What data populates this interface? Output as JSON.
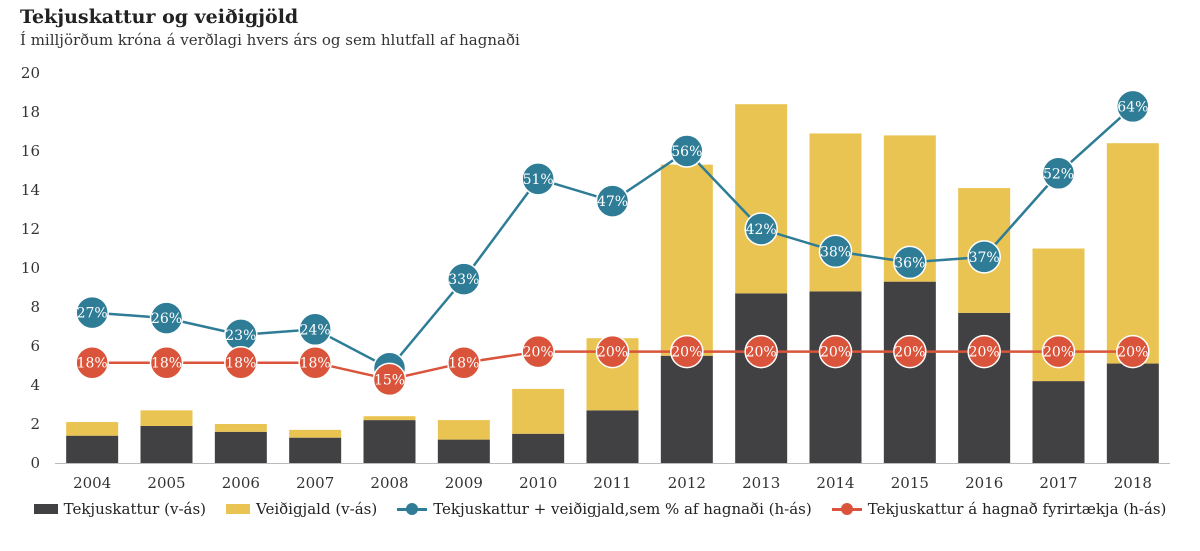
{
  "header": {
    "title": "Tekjuskattur og veiðigjöld",
    "subtitle": "Í milljörðum króna á verðlagi hvers árs og sem hlutfall af hagnaði"
  },
  "colors": {
    "tax_bar": "#414042",
    "fee_bar": "#EAC452",
    "total_line": "#2E7C96",
    "tax_line": "#D9543A",
    "axis": "#bbbbbb",
    "label_text": "#ffffff"
  },
  "chart_data": {
    "type": "bar",
    "title": "Tekjuskattur og veiðigjöld",
    "subtitle": "Í milljörðum króna á verðlagi hvers árs og sem hlutfall af hagnaði",
    "ylim": [
      0,
      20
    ],
    "yticks": [
      0,
      2,
      4,
      6,
      8,
      10,
      12,
      14,
      16,
      18,
      20
    ],
    "grid": false,
    "legend_position": "bottom",
    "categories": [
      "2004",
      "2005",
      "2006",
      "2007",
      "2008",
      "2009",
      "2010",
      "2011",
      "2012",
      "2013",
      "2014",
      "2015",
      "2016",
      "2017",
      "2018"
    ],
    "series": [
      {
        "name": "Tekjuskattur (v-ás)",
        "kind": "bar",
        "axis": "left",
        "stack": "a",
        "values": [
          1.4,
          1.9,
          1.6,
          1.3,
          2.2,
          1.2,
          1.5,
          2.7,
          5.5,
          8.7,
          8.8,
          9.3,
          7.7,
          4.2,
          5.1
        ]
      },
      {
        "name": "Veiðigjald (v-ás)",
        "kind": "bar",
        "axis": "left",
        "stack": "a",
        "values": [
          0.7,
          0.8,
          0.4,
          0.4,
          0.2,
          1.0,
          2.3,
          3.7,
          9.8,
          9.7,
          8.1,
          7.5,
          6.4,
          6.8,
          11.3
        ]
      },
      {
        "name": "Tekjuskattur + veiðigjald,sem % af hagnaði (h-ás)",
        "kind": "line",
        "axis": "right",
        "values": [
          27,
          26,
          23,
          24,
          17,
          33,
          51,
          47,
          56,
          42,
          38,
          36,
          37,
          52,
          64
        ],
        "labels": [
          "27%",
          "26%",
          "23%",
          "24%",
          "",
          "33%",
          "51%",
          "47%",
          "56%",
          "42%",
          "38%",
          "36%",
          "37%",
          "52%",
          "64%"
        ]
      },
      {
        "name": "Tekjuskattur á hagnað fyrirtækja (h-ás)",
        "kind": "line",
        "axis": "right",
        "values": [
          18,
          18,
          18,
          18,
          15,
          18,
          20,
          20,
          20,
          20,
          20,
          20,
          20,
          20,
          20
        ],
        "labels": [
          "18%",
          "18%",
          "18%",
          "18%",
          "15%",
          "18%",
          "20%",
          "20%",
          "20%",
          "20%",
          "20%",
          "20%",
          "20%",
          "20%",
          "20%"
        ]
      }
    ],
    "right_axis_range_percent": [
      0,
      70
    ],
    "right_axis_shown": false
  },
  "legend": [
    {
      "label": "Tekjuskattur (v-ás)",
      "type": "bar",
      "color_key": "tax_bar"
    },
    {
      "label": "Veiðigjald (v-ás)",
      "type": "bar",
      "color_key": "fee_bar"
    },
    {
      "label": "Tekjuskattur + veiðigjald,sem % af hagnaði (h-ás)",
      "type": "line",
      "color_key": "total_line"
    },
    {
      "label": "Tekjuskattur á hagnað fyrirtækja (h-ás)",
      "type": "line",
      "color_key": "tax_line"
    }
  ]
}
